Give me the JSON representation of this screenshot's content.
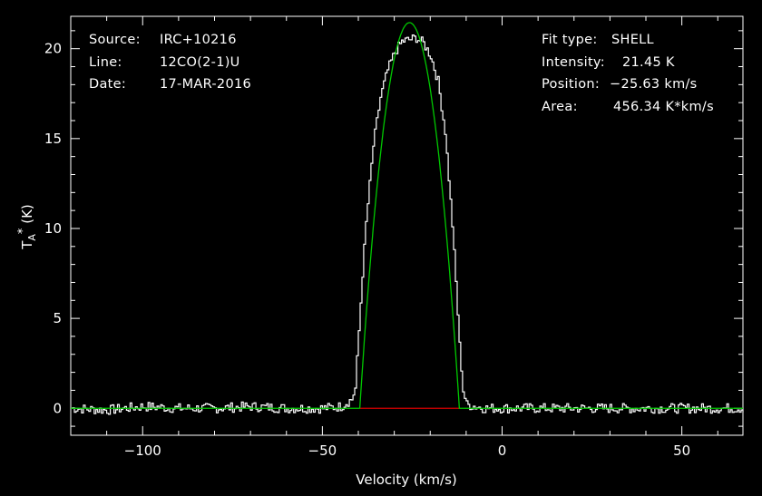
{
  "info_left": {
    "source_label": "Source:",
    "source_value": "IRC+10216",
    "line_label": "Line:",
    "line_value": "12CO(2-1)U",
    "date_label": "Date:",
    "date_value": "17-MAR-2016"
  },
  "info_right": {
    "fit_label": "Fit type:",
    "fit_value": "SHELL",
    "intensity_label": "Intensity:",
    "intensity_value": "21.45 K",
    "position_label": "Position:",
    "position_value": "−25.63 km/s",
    "area_label": "Area:",
    "area_value": "456.34 K*km/s"
  },
  "chart_data": {
    "type": "line",
    "xlabel": "Velocity (km/s)",
    "ylabel_main": "T",
    "ylabel_sub": "A",
    "ylabel_sup": "*",
    "ylabel_unit": "(K)",
    "xlim": [
      -120,
      67
    ],
    "ylim": [
      -1.5,
      21.8
    ],
    "xticks": [
      -100,
      -50,
      0,
      50
    ],
    "xtick_labels": [
      "−100",
      "−50",
      "0",
      "50"
    ],
    "yticks": [
      0,
      5,
      10,
      15,
      20
    ],
    "ytick_labels": [
      "0",
      "5",
      "10",
      "15",
      "20"
    ],
    "colors": {
      "background": "#000000",
      "axes": "#ffffff",
      "spectrum": "#ffffff",
      "fit": "#00c800",
      "baseline": "#d40000"
    },
    "series": [
      {
        "role": "spectrum",
        "x": [
          -120,
          -110,
          -100,
          -90,
          -80,
          -70,
          -60,
          -50,
          -45,
          -42,
          -41,
          -40,
          -39,
          -38,
          -36,
          -34,
          -32,
          -30,
          -28,
          -26,
          -24,
          -22,
          -20,
          -18,
          -16,
          -14,
          -13,
          -12,
          -11,
          -10,
          -5,
          0,
          10,
          20,
          30,
          40,
          50,
          60,
          67
        ],
        "y": [
          0.0,
          -0.1,
          0.1,
          0.0,
          0.0,
          0.1,
          0.0,
          0.0,
          0.1,
          0.5,
          1.1,
          4.3,
          7.5,
          10.3,
          14.6,
          17.3,
          18.8,
          19.8,
          20.4,
          20.5,
          20.6,
          20.3,
          19.6,
          18.2,
          15.4,
          10.2,
          7.0,
          3.5,
          1.0,
          0.2,
          0.0,
          0.0,
          0.0,
          0.0,
          0.0,
          0.0,
          0.0,
          0.0,
          0.0
        ]
      },
      {
        "role": "fit",
        "type": "SHELL",
        "intensity": 21.45,
        "center": -25.63,
        "area": 456.34,
        "x_range": [
          -39.6,
          -11.9
        ],
        "horn_to_center": 0.0
      },
      {
        "role": "baseline",
        "x": [
          -39.6,
          -11.9
        ],
        "y": [
          0,
          0
        ]
      }
    ]
  }
}
